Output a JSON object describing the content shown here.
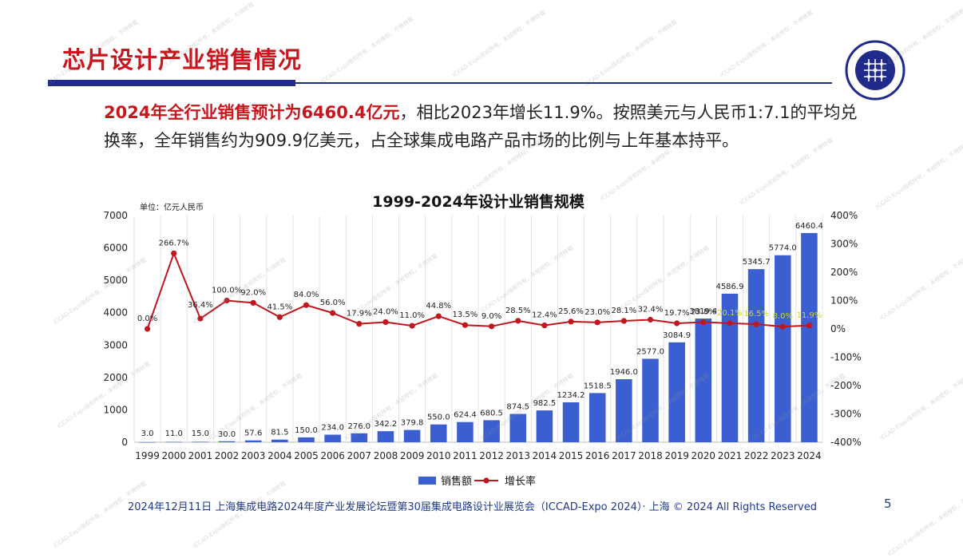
{
  "slide": {
    "title": "芯片设计产业销售情况",
    "summary_highlight": "2024年全行业销售预计为6460.4亿元",
    "summary_rest": "，相比2023年增长11.9%。按照美元与人民币1:7.1的平均兑换率，全年销售约为909.9亿美元，占全球集成电路产品市场的比例与上年基本持平。",
    "footer": "2024年12月11日 上海集成电路2024年度产业发展论坛暨第30届集成电路设计业展览会（ICCAD-Expo 2024）· 上海 © 2024 All Rights Reserved",
    "page_number": "5",
    "watermark": "ICCAD-Expo版权所有，未经授权，不得转载"
  },
  "colors": {
    "title_red": "#c8161d",
    "bar_blue": "#3b5fd0",
    "line_red": "#c0161d",
    "nav_blue": "#1f2a8a"
  },
  "chart_data": {
    "type": "bar",
    "title": "1999-2024年设计业销售规模",
    "unit_label": "单位：亿元人民币",
    "categories": [
      "1999",
      "2000",
      "2001",
      "2002",
      "2003",
      "2004",
      "2005",
      "2006",
      "2007",
      "2008",
      "2009",
      "2010",
      "2011",
      "2012",
      "2013",
      "2014",
      "2015",
      "2016",
      "2017",
      "2018",
      "2019",
      "2020",
      "2021",
      "2022",
      "2023",
      "2024"
    ],
    "series": [
      {
        "name": "销售额",
        "type": "bar",
        "axis": "left",
        "values": [
          3.0,
          11.0,
          15.0,
          30.0,
          57.6,
          81.5,
          150.0,
          234.0,
          276.0,
          342.2,
          379.8,
          550.0,
          624.4,
          680.5,
          874.5,
          982.5,
          1234.2,
          1518.5,
          1946.0,
          2577.0,
          3084.9,
          3819.4,
          4586.9,
          5345.7,
          5774.0,
          6460.4
        ],
        "labels": [
          "3.0",
          "11.0",
          "15.0",
          "30.0",
          "57.6",
          "81.5",
          "150.0",
          "234.0",
          "276.0",
          "342.2",
          "379.8",
          "550.0",
          "624.4",
          "680.5",
          "874.5",
          "982.5",
          "1234.2",
          "1518.5",
          "1946.0",
          "2577.0",
          "3084.9",
          "3819.4",
          "4586.9",
          "5345.7",
          "5774.0",
          "6460.4"
        ]
      },
      {
        "name": "增长率",
        "type": "line",
        "axis": "right",
        "values": [
          0.0,
          266.7,
          36.4,
          100.0,
          92.0,
          41.5,
          84.0,
          56.0,
          17.9,
          24.0,
          11.0,
          44.8,
          13.5,
          9.0,
          28.5,
          12.4,
          25.6,
          23.0,
          28.1,
          32.4,
          19.7,
          23.8,
          20.1,
          16.5,
          8.0,
          11.9
        ],
        "labels": [
          "0.0%",
          "266.7%",
          "36.4%",
          "100.0%",
          "92.0%",
          "41.5%",
          "84.0%",
          "56.0%",
          "17.9%",
          "24.0%",
          "11.0%",
          "44.8%",
          "13.5%",
          "9.0%",
          "28.5%",
          "12.4%",
          "25.6%",
          "23.0%",
          "28.1%",
          "32.4%",
          "19.7%",
          "23.8%",
          "20.1%",
          "16.5%",
          "8.0%",
          "11.9%"
        ]
      }
    ],
    "y_left": {
      "min": 0,
      "max": 7000,
      "ticks": [
        "0",
        "1000",
        "2000",
        "3000",
        "4000",
        "5000",
        "6000",
        "7000"
      ]
    },
    "y_right": {
      "min": -400,
      "max": 400,
      "ticks": [
        "-400%",
        "-300%",
        "-200%",
        "-100%",
        "0%",
        "100%",
        "200%",
        "300%",
        "400%"
      ]
    },
    "grid": true,
    "legend_position": "bottom"
  }
}
